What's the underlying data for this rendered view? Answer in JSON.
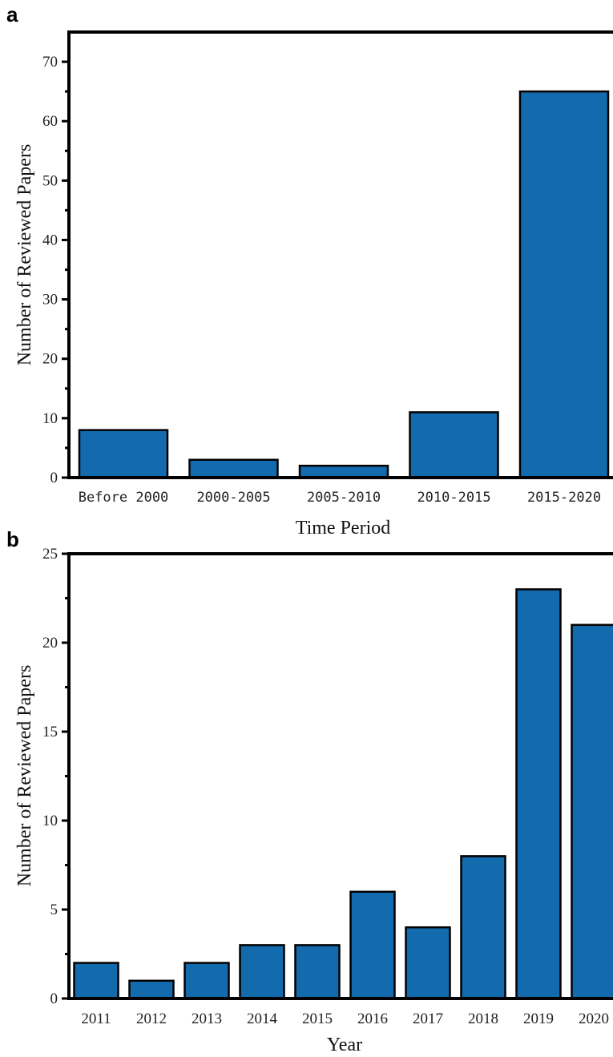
{
  "chart_data": [
    {
      "panel": "a",
      "type": "bar",
      "categories": [
        "Before 2000",
        "2000-2005",
        "2005-2010",
        "2010-2015",
        "2015-2020"
      ],
      "values": [
        8,
        3,
        2,
        11,
        65
      ],
      "xlabel": "Time Period",
      "ylabel": "Number of Reviewed Papers",
      "ylim": [
        0,
        75
      ],
      "yticks": [
        0,
        10,
        20,
        30,
        40,
        50,
        60,
        70
      ],
      "grid": false,
      "bar_color": "#136bad"
    },
    {
      "panel": "b",
      "type": "bar",
      "categories": [
        "2011",
        "2012",
        "2013",
        "2014",
        "2015",
        "2016",
        "2017",
        "2018",
        "2019",
        "2020"
      ],
      "values": [
        2,
        1,
        2,
        3,
        3,
        6,
        4,
        8,
        23,
        21
      ],
      "xlabel": "Year",
      "ylabel": "Number of Reviewed Papers",
      "ylim": [
        0,
        25
      ],
      "yticks": [
        0,
        5,
        10,
        15,
        20,
        25
      ],
      "grid": false,
      "bar_color": "#136bad"
    }
  ]
}
